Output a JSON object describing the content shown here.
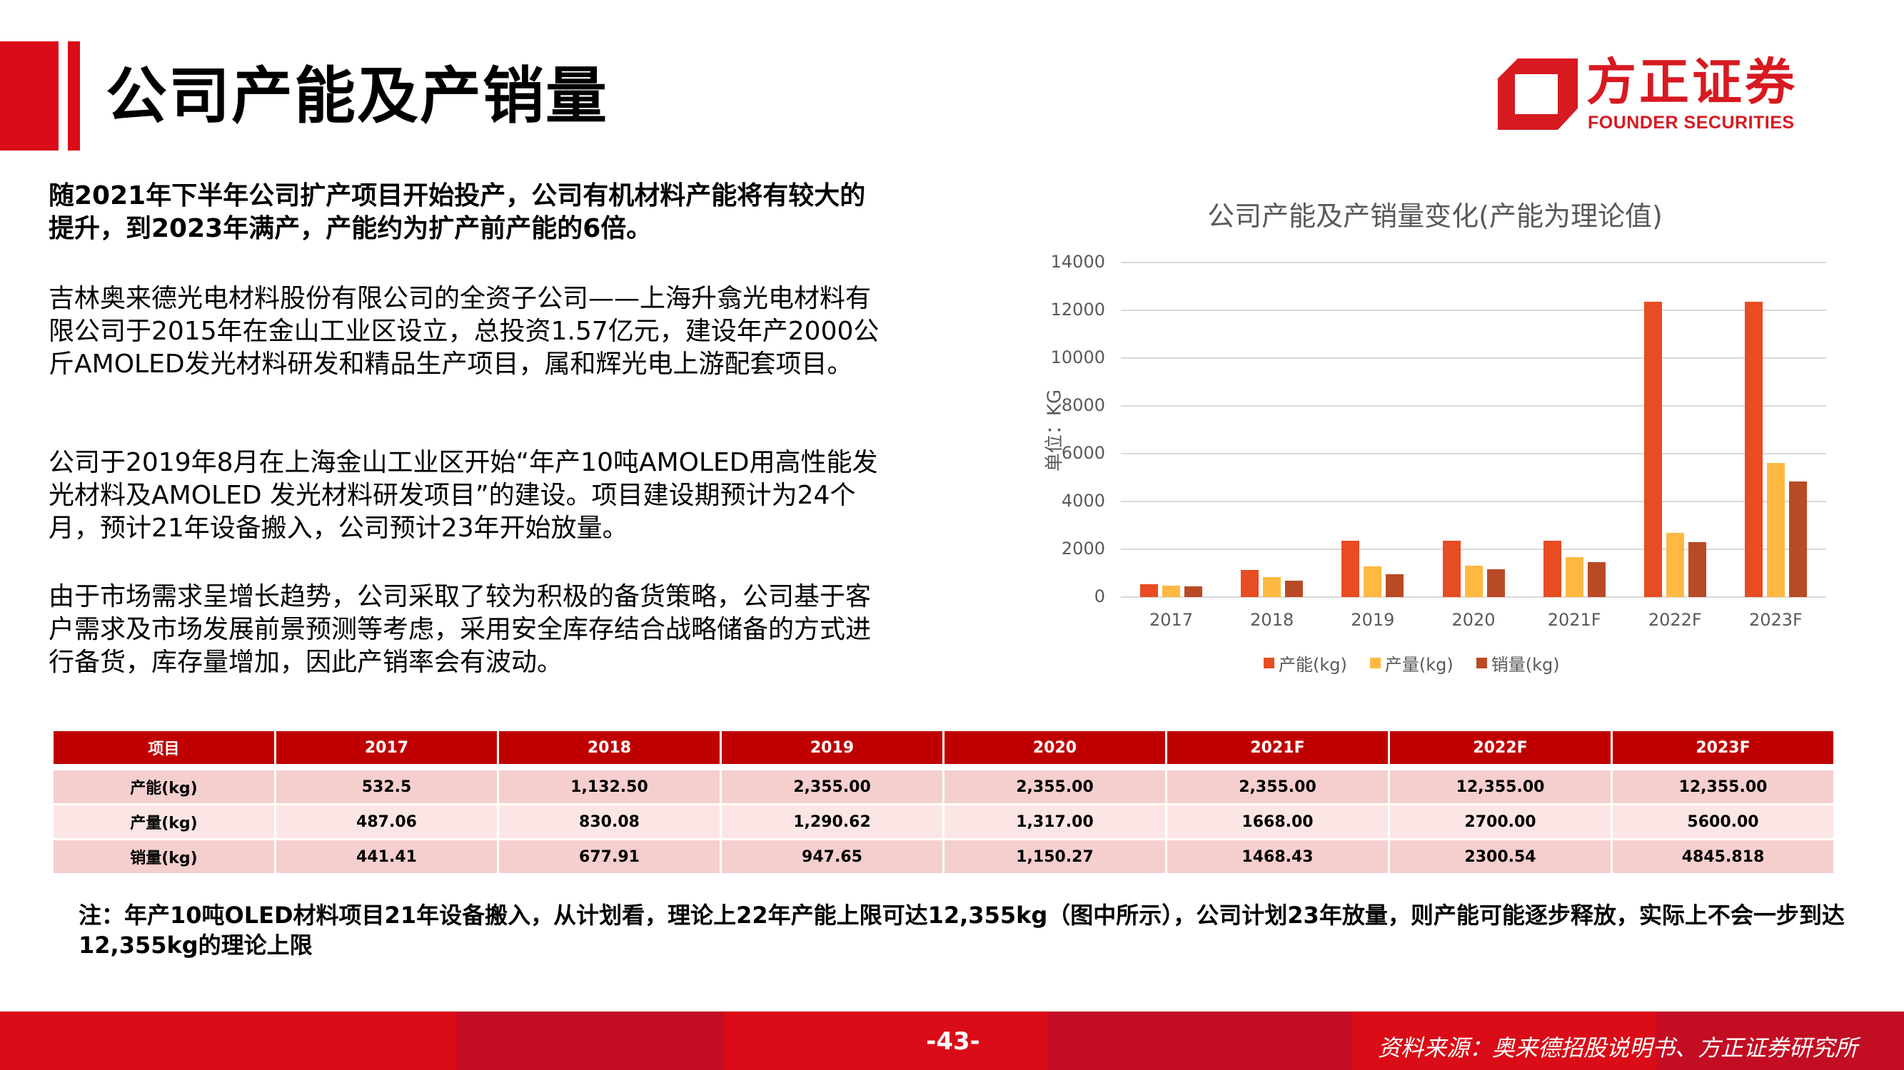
{
  "header": {
    "title": "公司产能及产销量",
    "logo": {
      "cn": "方正证券",
      "en": "FOUNDER SECURITIES",
      "color": "#d71920"
    }
  },
  "body": {
    "lead": "随2021年下半年公司扩产项目开始投产，公司有机材料产能将有较大的提升，到2023年满产，产能约为扩产前产能的6倍。",
    "paragraphs": [
      "吉林奥来德光电材料股份有限公司的全资子公司——上海升翕光电材料有限公司于2015年在金山工业区设立，总投资1.57亿元，建设年产2000公斤AMOLED发光材料研发和精品生产项目，属和辉光电上游配套项目。",
      "公司于2019年8月在上海金山工业区开始“年产10吨AMOLED用高性能发光材料及AMOLED 发光材料研发项目”的建设。项目建设期预计为24个月，预计21年设备搬入，公司预计23年开始放量。",
      "由于市场需求呈增长趋势，公司采取了较为积极的备货策略，公司基于客户需求及市场发展前景预测等考虑，采用安全库存结合战略储备的方式进行备货，库存量增加，因此产销率会有波动。"
    ]
  },
  "chart_data": {
    "type": "bar",
    "title": "公司产能及产销量变化(产能为理论值)",
    "xlabel": "",
    "ylabel": "单位：KG",
    "ylim": [
      0,
      14000
    ],
    "yticks": [
      "14000",
      "12000",
      "10000",
      "8000",
      "6000",
      "4000",
      "2000",
      "0"
    ],
    "grid": true,
    "legend_position": "bottom",
    "categories": [
      "2017",
      "2018",
      "2019",
      "2020",
      "2021F",
      "2022F",
      "2023F"
    ],
    "series": [
      {
        "name": "产能(kg)",
        "color": "#e84c22",
        "values": [
          532.5,
          1132.5,
          2355,
          2355,
          2355,
          12355,
          12355
        ]
      },
      {
        "name": "产量(kg)",
        "color": "#ffb942",
        "values": [
          487.06,
          830.08,
          1290.62,
          1317,
          1668,
          2700,
          5600
        ]
      },
      {
        "name": "销量(kg)",
        "color": "#b84a26",
        "values": [
          441.41,
          677.91,
          947.65,
          1150.27,
          1468.43,
          2300.54,
          4845.818
        ]
      }
    ]
  },
  "table": {
    "headers": [
      "项目",
      "2017",
      "2018",
      "2019",
      "2020",
      "2021F",
      "2022F",
      "2023F"
    ],
    "rows": [
      [
        "产能(kg)",
        "532.5",
        "1,132.50",
        "2,355.00",
        "2,355.00",
        "2,355.00",
        "12,355.00",
        "12,355.00"
      ],
      [
        "产量(kg)",
        "487.06",
        "830.08",
        "1,290.62",
        "1,317.00",
        "1668.00",
        "2700.00",
        "5600.00"
      ],
      [
        "销量(kg)",
        "441.41",
        "677.91",
        "947.65",
        "1,150.27",
        "1468.43",
        "2300.54",
        "4845.818"
      ]
    ]
  },
  "note": "注：年产10吨OLED材料项目21年设备搬入，从计划看，理论上22年产能上限可达12,355kg（图中所示），公司计划23年放量，则产能可能逐步释放，实际上不会一步到达12,355kg的理论上限",
  "footer": {
    "page_number": "-43-",
    "source": "资料来源：奥来德招股说明书、方正证券研究所"
  },
  "colors": {
    "brand_red": "#d90c17",
    "table_header": "#c00000",
    "row_odd": "#f4cfce",
    "row_even": "#fbe6e5"
  }
}
